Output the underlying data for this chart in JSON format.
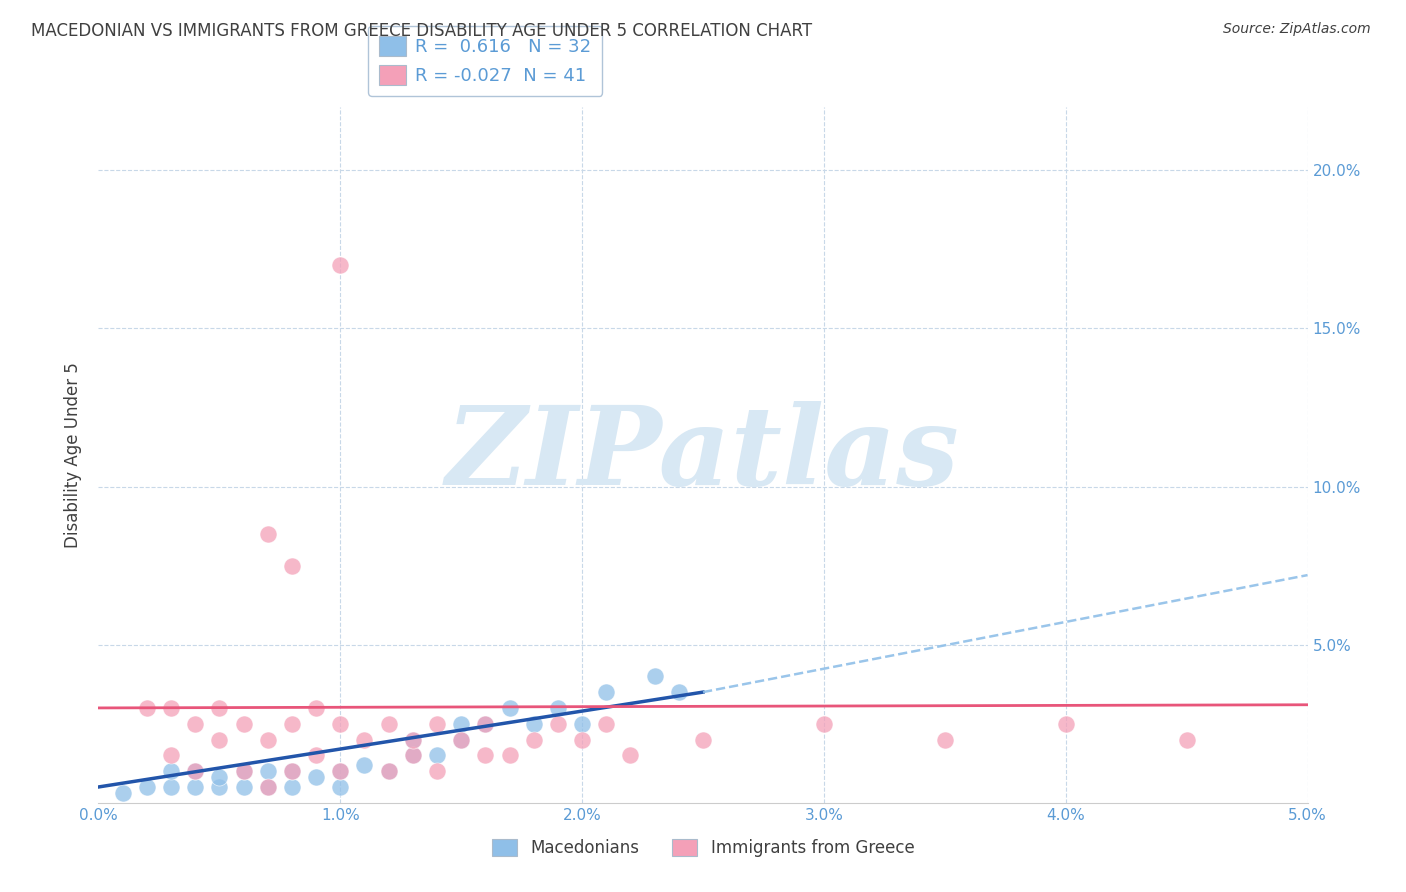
{
  "title": "MACEDONIAN VS IMMIGRANTS FROM GREECE DISABILITY AGE UNDER 5 CORRELATION CHART",
  "source": "Source: ZipAtlas.com",
  "ylabel": "Disability Age Under 5",
  "legend_macedonians": "Macedonians",
  "legend_immigrants": "Immigrants from Greece",
  "R_mac": 0.616,
  "N_mac": 32,
  "R_imm": -0.027,
  "N_imm": 41,
  "macedonians_x": [
    0.001,
    0.002,
    0.003,
    0.003,
    0.004,
    0.004,
    0.005,
    0.005,
    0.006,
    0.006,
    0.007,
    0.007,
    0.008,
    0.008,
    0.009,
    0.01,
    0.01,
    0.011,
    0.012,
    0.013,
    0.013,
    0.014,
    0.015,
    0.015,
    0.016,
    0.017,
    0.018,
    0.019,
    0.02,
    0.021,
    0.023,
    0.024
  ],
  "macedonians_y": [
    0.003,
    0.005,
    0.005,
    0.01,
    0.005,
    0.01,
    0.005,
    0.008,
    0.005,
    0.01,
    0.005,
    0.01,
    0.005,
    0.01,
    0.008,
    0.005,
    0.01,
    0.012,
    0.01,
    0.015,
    0.02,
    0.015,
    0.02,
    0.025,
    0.025,
    0.03,
    0.025,
    0.03,
    0.025,
    0.035,
    0.04,
    0.035
  ],
  "immigrants_x": [
    0.002,
    0.003,
    0.003,
    0.004,
    0.004,
    0.005,
    0.005,
    0.006,
    0.006,
    0.007,
    0.007,
    0.008,
    0.008,
    0.009,
    0.009,
    0.01,
    0.01,
    0.011,
    0.012,
    0.012,
    0.013,
    0.013,
    0.014,
    0.014,
    0.015,
    0.016,
    0.016,
    0.017,
    0.018,
    0.019,
    0.02,
    0.021,
    0.022,
    0.025,
    0.03,
    0.035,
    0.04,
    0.045,
    0.008,
    0.007,
    0.01
  ],
  "immigrants_y": [
    0.03,
    0.015,
    0.03,
    0.01,
    0.025,
    0.02,
    0.03,
    0.01,
    0.025,
    0.005,
    0.02,
    0.01,
    0.025,
    0.015,
    0.03,
    0.01,
    0.025,
    0.02,
    0.01,
    0.025,
    0.015,
    0.02,
    0.01,
    0.025,
    0.02,
    0.015,
    0.025,
    0.015,
    0.02,
    0.025,
    0.02,
    0.025,
    0.015,
    0.02,
    0.025,
    0.02,
    0.025,
    0.02,
    0.075,
    0.085,
    0.17
  ],
  "blue_color": "#8fbfe8",
  "pink_color": "#f4a0b8",
  "blue_line_color": "#2255aa",
  "pink_line_color": "#e8557a",
  "blue_dash_color": "#8fbfe8",
  "background_color": "#ffffff",
  "grid_color": "#c8d8e8",
  "title_color": "#404040",
  "axis_label_color": "#5b9bd5",
  "watermark_color": "#d8e8f4",
  "xlim": [
    0.0,
    0.05
  ],
  "ylim": [
    0.0,
    0.22
  ],
  "yticks": [
    0.0,
    0.05,
    0.1,
    0.15,
    0.2
  ],
  "ytick_labels": [
    "",
    "5.0%",
    "10.0%",
    "15.0%",
    "20.0%"
  ],
  "xticks": [
    0.0,
    0.01,
    0.02,
    0.03,
    0.04,
    0.05
  ],
  "xtick_labels": [
    "0.0%",
    "1.0%",
    "2.0%",
    "3.0%",
    "4.0%",
    "5.0%"
  ],
  "mac_line_x0": 0.0,
  "mac_line_y0": 0.005,
  "mac_line_x1": 0.025,
  "mac_line_y1": 0.035,
  "imm_line_x0": 0.0,
  "imm_line_y0": 0.03,
  "imm_line_x1": 0.05,
  "imm_line_y1": 0.031,
  "dash_line_x0": 0.025,
  "dash_line_y0": 0.035,
  "dash_line_x1": 0.05,
  "dash_line_y1": 0.072
}
